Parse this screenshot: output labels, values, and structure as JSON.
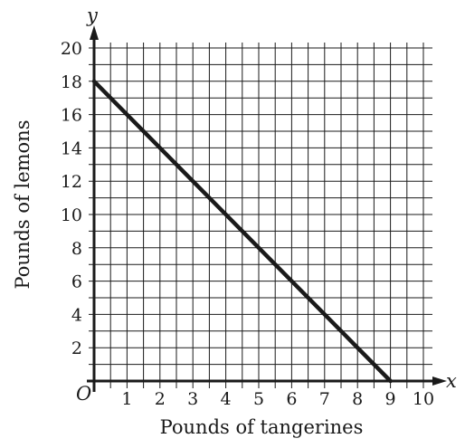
{
  "chart_data": {
    "type": "line",
    "title": "",
    "xlabel": "Pounds of tangerines",
    "ylabel": "Pounds of lemons",
    "x_axis_letter": "x",
    "y_axis_letter": "y",
    "origin_label": "O",
    "xlim": [
      0,
      10
    ],
    "ylim": [
      0,
      20
    ],
    "x_ticks": [
      1,
      2,
      3,
      4,
      5,
      6,
      7,
      8,
      9,
      10
    ],
    "y_ticks": [
      2,
      4,
      6,
      8,
      10,
      12,
      14,
      16,
      18,
      20
    ],
    "grid": true,
    "x_grid_step": 0.5,
    "y_grid_step": 1,
    "series": [
      {
        "x": [
          0,
          9
        ],
        "y": [
          18,
          0
        ]
      }
    ],
    "colors": {
      "line": "#1a1a1a",
      "grid": "#1a1a1a",
      "axis": "#1a1a1a"
    }
  }
}
